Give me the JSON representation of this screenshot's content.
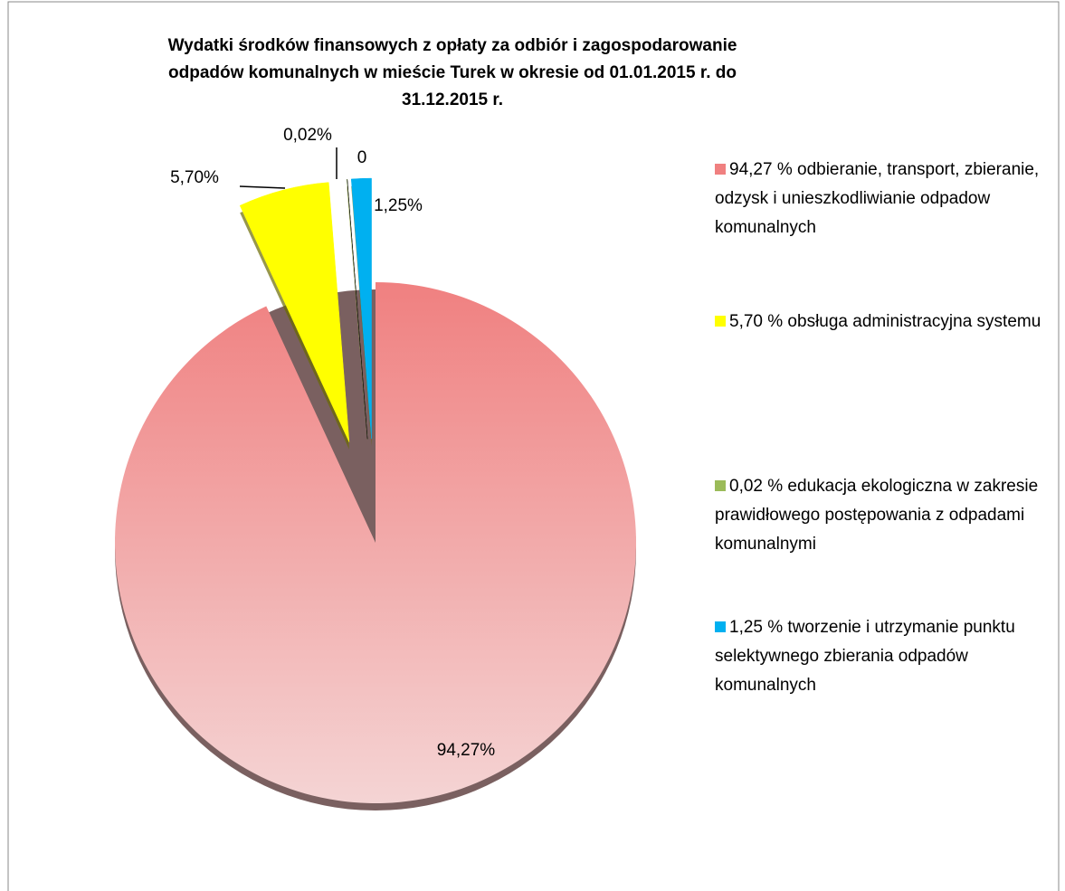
{
  "chart_data": {
    "type": "pie",
    "title": "Wydatki środków finansowych z opłaty za odbiór i zagospodarowanie odpadów komunalnych w mieście Turek w okresie od 01.01.2015 r. do 31.12.2015 r.",
    "categories": [
      "94,27 % odbieranie, transport, zbieranie, odzysk i unieszkodliwianie odpadow komunalnych",
      "5,70 % obsługa administracyjna systemu",
      "0,02 % edukacja ekologiczna w zakresie prawidłowego postępowania z odpadami komunalnymi",
      null,
      "1,25 % tworzenie i utrzymanie punktu selektywnego zbierania odpadów komunalnych"
    ],
    "values": [
      94.27,
      5.7,
      0.02,
      0,
      1.25
    ],
    "value_labels": [
      "94,27%",
      "5,70%",
      "0,02%",
      "0",
      "1,25%"
    ],
    "colors": [
      "#f08080",
      "#ffff00",
      "#9bbb59",
      null,
      "#00b0f0"
    ]
  }
}
